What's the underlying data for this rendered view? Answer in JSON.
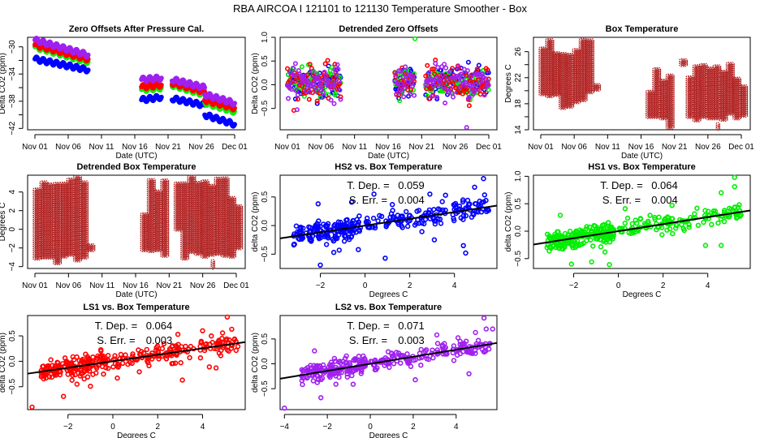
{
  "page_title": "RBA   AIRCOA I   121101 to 121130   Temperature Smoother - Box",
  "colors": {
    "HS2": "#0000ff",
    "HS1": "#00ee00",
    "LS1": "#ff0000",
    "LS2": "#a020f0",
    "box_temperature": "#b22222",
    "fit_line": "#000000"
  },
  "chart_data": [
    {
      "id": "zero-offsets",
      "type": "scatter",
      "title": "Zero Offsets After Pressure Cal.",
      "xlabel": "Date (UTC)",
      "ylabel": "Delta CO2 (ppm)",
      "x_ticks": [
        "Nov 01",
        "Nov 06",
        "Nov 11",
        "Nov 16",
        "Nov 21",
        "Nov 26",
        "Dec 01"
      ],
      "x_range_days": [
        0,
        30
      ],
      "ylim": [
        -42.2,
        -28.6
      ],
      "y_ticks": [
        -30,
        -34,
        -38,
        -42
      ],
      "y_minor_ticks": [
        -32,
        -36,
        -40
      ],
      "series": [
        {
          "name": "HS2",
          "segments": [
            {
              "x": [
                0,
                8
              ],
              "y": [
                -31.8,
                -33.4
              ]
            },
            {
              "x": [
                16,
                19
              ],
              "y": [
                -37.8,
                -37.4
              ]
            },
            {
              "x": [
                20.6,
                25.5
              ],
              "y": [
                -37.6,
                -38.6
              ]
            },
            {
              "x": [
                25.5,
                30
              ],
              "y": [
                -40.0,
                -41.4
              ]
            }
          ]
        },
        {
          "name": "HS1",
          "segments": [
            {
              "x": [
                0,
                8
              ],
              "y": [
                -30.0,
                -32.2
              ]
            },
            {
              "x": [
                16,
                19
              ],
              "y": [
                -36.3,
                -36.0
              ]
            },
            {
              "x": [
                20.6,
                25.5
              ],
              "y": [
                -35.6,
                -37.0
              ]
            },
            {
              "x": [
                25.5,
                30
              ],
              "y": [
                -38.2,
                -39.5
              ]
            }
          ]
        },
        {
          "name": "LS1",
          "segments": [
            {
              "x": [
                0,
                8
              ],
              "y": [
                -29.7,
                -31.8
              ]
            },
            {
              "x": [
                16,
                19
              ],
              "y": [
                -35.9,
                -35.6
              ]
            },
            {
              "x": [
                20.6,
                25.5
              ],
              "y": [
                -35.3,
                -36.6
              ]
            },
            {
              "x": [
                25.5,
                30
              ],
              "y": [
                -37.8,
                -39.0
              ]
            }
          ]
        },
        {
          "name": "LS2",
          "segments": [
            {
              "x": [
                0,
                8
              ],
              "y": [
                -29.0,
                -31.2
              ]
            },
            {
              "x": [
                16,
                19
              ],
              "y": [
                -34.8,
                -34.6
              ]
            },
            {
              "x": [
                20.6,
                25.5
              ],
              "y": [
                -34.8,
                -36.0
              ]
            },
            {
              "x": [
                25.5,
                30
              ],
              "y": [
                -37.0,
                -38.3
              ]
            }
          ]
        }
      ]
    },
    {
      "id": "detrended-zero-offsets",
      "type": "scatter",
      "title": "Detrended Zero Offsets",
      "xlabel": "Date (UTC)",
      "ylabel": "Delta CO2 (ppm)",
      "x_ticks": [
        "Nov 01",
        "Nov 06",
        "Nov 11",
        "Nov 16",
        "Nov 21",
        "Nov 26",
        "Dec 01"
      ],
      "x_range_days": [
        0,
        30
      ],
      "ylim": [
        -0.95,
        1.0
      ],
      "y_ticks": [
        1.0,
        0.5,
        0.0,
        -0.5
      ],
      "series_names": [
        "HS2",
        "HS1",
        "LS1",
        "LS2"
      ],
      "data_ranges_days": [
        [
          0,
          8
        ],
        [
          16,
          19
        ],
        [
          20.6,
          30
        ]
      ],
      "typical_spread": [
        -0.3,
        0.45
      ],
      "extremes": {
        "max": 0.97,
        "min": -0.9
      }
    },
    {
      "id": "box-temperature",
      "type": "scatter",
      "title": "Box Temperature",
      "xlabel": "Date (UTC)",
      "ylabel": "Degrees C",
      "x_ticks": [
        "Nov 01",
        "Nov 06",
        "Nov 11",
        "Nov 16",
        "Nov 21",
        "Nov 26",
        "Dec 01"
      ],
      "x_range_days": [
        0,
        30
      ],
      "ylim": [
        14,
        28.2
      ],
      "y_ticks": [
        26,
        22,
        18,
        14
      ],
      "y_minor_ticks": [
        24,
        20,
        16
      ],
      "data_ranges_days": [
        [
          0,
          8
        ],
        [
          16,
          19
        ],
        [
          20.6,
          30
        ]
      ],
      "daily_ranges": [
        {
          "day": 0,
          "min": 19.5,
          "max": 26.5
        },
        {
          "day": 1,
          "min": 19.2,
          "max": 27.8
        },
        {
          "day": 2,
          "min": 19.4,
          "max": 26.0
        },
        {
          "day": 3,
          "min": 17.4,
          "max": 25.8
        },
        {
          "day": 4,
          "min": 17.6,
          "max": 25.8
        },
        {
          "day": 5,
          "min": 18.3,
          "max": 26.5
        },
        {
          "day": 6,
          "min": 18.6,
          "max": 27.8
        },
        {
          "day": 7,
          "min": 19.8,
          "max": 28.0
        },
        {
          "day": 8,
          "min": 20.2,
          "max": 21.0
        },
        {
          "day": 16,
          "min": 16.0,
          "max": 19.8
        },
        {
          "day": 17,
          "min": 16.0,
          "max": 23.4
        },
        {
          "day": 18,
          "min": 15.8,
          "max": 21.5
        },
        {
          "day": 19,
          "min": 14.4,
          "max": 22.6
        },
        {
          "day": 21,
          "min": 24.0,
          "max": 24.8
        },
        {
          "day": 22,
          "min": 16.0,
          "max": 22.0
        },
        {
          "day": 23,
          "min": 15.5,
          "max": 24.0
        },
        {
          "day": 24,
          "min": 16.0,
          "max": 24.0
        },
        {
          "day": 25,
          "min": 15.8,
          "max": 23.6
        },
        {
          "day": 26,
          "min": 15.8,
          "max": 23.8
        },
        {
          "day": 26.5,
          "min": 14.2,
          "max": 15.0
        },
        {
          "day": 27,
          "min": 15.6,
          "max": 23.0
        },
        {
          "day": 28,
          "min": 16.5,
          "max": 24.2
        },
        {
          "day": 29,
          "min": 15.8,
          "max": 21.8
        },
        {
          "day": 30,
          "min": 16.2,
          "max": 20.8
        }
      ]
    },
    {
      "id": "detrended-box-temperature",
      "type": "scatter",
      "title": "Detrended Box Temperature",
      "xlabel": "Date (UTC)",
      "ylabel": "Degrees C",
      "x_ticks": [
        "Nov 01",
        "Nov 06",
        "Nov 11",
        "Nov 16",
        "Nov 21",
        "Nov 26",
        "Dec 01"
      ],
      "x_range_days": [
        0,
        30
      ],
      "ylim": [
        -4.2,
        5.8
      ],
      "y_ticks": [
        4,
        2,
        0,
        -2,
        -4
      ],
      "data_ranges_days": [
        [
          0,
          8
        ],
        [
          16,
          19
        ],
        [
          20.6,
          30
        ]
      ],
      "daily_ranges": [
        {
          "day": 0,
          "min": -3.1,
          "max": 4.3
        },
        {
          "day": 1,
          "min": -3.0,
          "max": 5.1
        },
        {
          "day": 2,
          "min": -3.0,
          "max": 4.8
        },
        {
          "day": 3,
          "min": -3.6,
          "max": 4.9
        },
        {
          "day": 4,
          "min": -2.9,
          "max": 5.0
        },
        {
          "day": 5,
          "min": -2.7,
          "max": 5.5
        },
        {
          "day": 6,
          "min": -3.3,
          "max": 5.6
        },
        {
          "day": 7,
          "min": -3.0,
          "max": 5.2
        },
        {
          "day": 8,
          "min": -2.2,
          "max": -1.6
        },
        {
          "day": 16,
          "min": -2.2,
          "max": 1.7
        },
        {
          "day": 17,
          "min": -2.3,
          "max": 5.3
        },
        {
          "day": 18,
          "min": -2.2,
          "max": 4.1
        },
        {
          "day": 19,
          "min": -2.8,
          "max": 5.4
        },
        {
          "day": 21,
          "min": 0.0,
          "max": 5.0
        },
        {
          "day": 22,
          "min": -3.1,
          "max": 5.0
        },
        {
          "day": 23,
          "min": -2.4,
          "max": 5.7
        },
        {
          "day": 24,
          "min": -2.6,
          "max": 5.0
        },
        {
          "day": 25,
          "min": -2.9,
          "max": 5.2
        },
        {
          "day": 26,
          "min": -2.7,
          "max": 4.7
        },
        {
          "day": 26.5,
          "min": -4.1,
          "max": -3.4
        },
        {
          "day": 27,
          "min": -2.6,
          "max": 5.6
        },
        {
          "day": 28,
          "min": -2.8,
          "max": 5.6
        },
        {
          "day": 29,
          "min": -2.9,
          "max": 3.5
        },
        {
          "day": 30,
          "min": -2.0,
          "max": 2.6
        }
      ]
    },
    {
      "id": "hs2-vs-box-temperature",
      "type": "scatter",
      "title": "HS2 vs. Box Temperature",
      "series_name": "HS2",
      "xlabel": "Degrees C",
      "ylabel": "delta CO2 (ppm)",
      "xlim": [
        -3.8,
        5.9
      ],
      "ylim": [
        -0.75,
        0.88
      ],
      "x_ticks": [
        -2,
        0,
        2,
        4
      ],
      "y_ticks": [
        0.5,
        0.0,
        -0.5
      ],
      "annotation": {
        "tdep_label": "T. Dep. =",
        "tdep_value": "0.059",
        "serr_label": "S. Err. =",
        "serr_value": "0.004"
      },
      "fit": {
        "slope": 0.059,
        "intercept": 0.0
      },
      "outliers": [
        {
          "x": -2.0,
          "y": -0.69
        },
        {
          "x": 0.9,
          "y": -0.57
        },
        {
          "x": -1.4,
          "y": -0.47
        },
        {
          "x": -0.3,
          "y": -0.42
        },
        {
          "x": 3.1,
          "y": -0.25
        },
        {
          "x": 4.4,
          "y": -0.35
        },
        {
          "x": 4.5,
          "y": -0.48
        },
        {
          "x": 5.3,
          "y": 0.82
        },
        {
          "x": 4.9,
          "y": 0.67
        },
        {
          "x": 0.4,
          "y": 0.55
        },
        {
          "x": 2.9,
          "y": 0.55
        },
        {
          "x": 3.6,
          "y": 0.53
        },
        {
          "x": -2.1,
          "y": 0.38
        },
        {
          "x": -0.6,
          "y": 0.41
        }
      ]
    },
    {
      "id": "hs1-vs-box-temperature",
      "type": "scatter",
      "title": "HS1 vs. Box Temperature",
      "series_name": "HS1",
      "xlabel": "Degrees C",
      "ylabel": "delta CO2 (ppm)",
      "xlim": [
        -3.8,
        5.9
      ],
      "ylim": [
        -0.68,
        1.02
      ],
      "x_ticks": [
        -2,
        0,
        2,
        4
      ],
      "y_ticks": [
        1.0,
        0.5,
        0.0,
        -0.5
      ],
      "annotation": {
        "tdep_label": "T. Dep. =",
        "tdep_value": "0.064",
        "serr_label": "S. Err. =",
        "serr_value": "0.004"
      },
      "fit": {
        "slope": 0.064,
        "intercept": 0.0
      },
      "outliers": [
        {
          "x": 5.2,
          "y": 0.98
        },
        {
          "x": 5.2,
          "y": 0.81
        },
        {
          "x": 4.6,
          "y": 0.7
        },
        {
          "x": -2.1,
          "y": -0.6
        },
        {
          "x": -1.2,
          "y": -0.56
        },
        {
          "x": -0.4,
          "y": -0.61
        },
        {
          "x": 3.9,
          "y": -0.26
        },
        {
          "x": 4.6,
          "y": -0.26
        },
        {
          "x": -0.6,
          "y": -0.38
        },
        {
          "x": 0.3,
          "y": 0.41
        },
        {
          "x": -2.6,
          "y": 0.29
        },
        {
          "x": 2.4,
          "y": 0.47
        }
      ]
    },
    {
      "id": "ls1-vs-box-temperature",
      "type": "scatter",
      "title": "LS1 vs. Box Temperature",
      "series_name": "LS1",
      "xlabel": "Degrees C",
      "ylabel": "delta CO2 (ppm)",
      "xlim": [
        -3.8,
        5.9
      ],
      "ylim": [
        -0.95,
        0.9
      ],
      "x_ticks": [
        -2,
        0,
        2,
        4
      ],
      "y_ticks": [
        0.5,
        0.0,
        -0.5
      ],
      "annotation": {
        "tdep_label": "T. Dep. =",
        "tdep_value": "0.064",
        "serr_label": "S. Err. =",
        "serr_value": "0.003"
      },
      "fit": {
        "slope": 0.064,
        "intercept": 0.0
      },
      "outliers": [
        {
          "x": -3.6,
          "y": -0.9
        },
        {
          "x": -2.2,
          "y": -0.69
        },
        {
          "x": -1.0,
          "y": -0.49
        },
        {
          "x": -1.6,
          "y": -0.45
        },
        {
          "x": 0.2,
          "y": -0.33
        },
        {
          "x": 3.1,
          "y": -0.37
        },
        {
          "x": 4.3,
          "y": -0.11
        },
        {
          "x": 4.6,
          "y": -0.13
        },
        {
          "x": 5.1,
          "y": 0.87
        },
        {
          "x": 5.3,
          "y": 0.63
        },
        {
          "x": 4.0,
          "y": 0.6
        },
        {
          "x": 2.9,
          "y": 0.53
        }
      ]
    },
    {
      "id": "ls2-vs-box-temperature",
      "type": "scatter",
      "title": "LS2 vs. Box Temperature",
      "series_name": "LS2",
      "xlabel": "Degrees C",
      "ylabel": "delta CO2 (ppm)",
      "xlim": [
        -4.2,
        5.9
      ],
      "ylim": [
        -0.92,
        0.97
      ],
      "x_ticks": [
        -4,
        -2,
        0,
        2,
        4
      ],
      "y_ticks": [
        0.5,
        0.0,
        -0.5
      ],
      "annotation": {
        "tdep_label": "T. Dep. =",
        "tdep_value": "0.071",
        "serr_label": "S. Err. =",
        "serr_value": "0.003"
      },
      "fit": {
        "slope": 0.071,
        "intercept": 0.0
      },
      "outliers": [
        {
          "x": -4.0,
          "y": -0.89
        },
        {
          "x": -2.3,
          "y": -0.68
        },
        {
          "x": -0.8,
          "y": -0.41
        },
        {
          "x": -1.6,
          "y": -0.41
        },
        {
          "x": 2.1,
          "y": -0.32
        },
        {
          "x": 4.6,
          "y": -0.2
        },
        {
          "x": 5.3,
          "y": 0.92
        },
        {
          "x": 5.4,
          "y": 0.7
        },
        {
          "x": 5.7,
          "y": 0.7
        },
        {
          "x": 3.1,
          "y": 0.58
        },
        {
          "x": -2.6,
          "y": 0.26
        },
        {
          "x": 4.9,
          "y": 0.63
        }
      ]
    }
  ]
}
